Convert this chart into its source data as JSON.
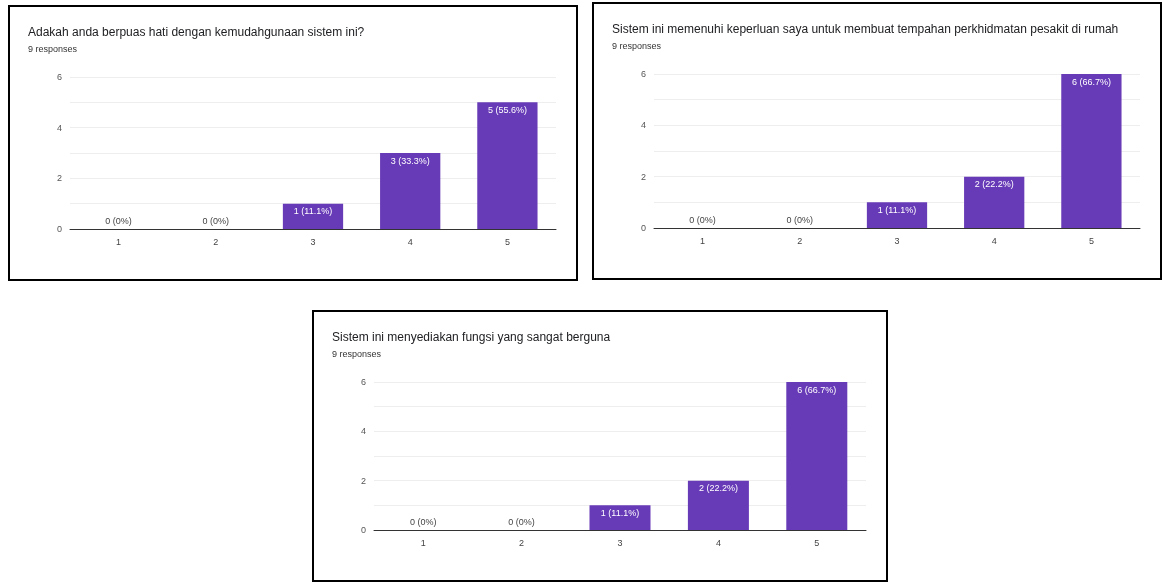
{
  "chart_data": [
    {
      "type": "bar",
      "title": "Adakah anda berpuas hati dengan kemudahgunaan sistem ini?",
      "subtitle": "9 responses",
      "categories": [
        "1",
        "2",
        "3",
        "4",
        "5"
      ],
      "values": [
        0,
        0,
        1,
        3,
        5
      ],
      "value_labels": [
        "0 (0%)",
        "0 (0%)",
        "1 (11.1%)",
        "3 (33.3%)",
        "5 (55.6%)"
      ],
      "color": "#673ab7",
      "ylim": [
        0,
        6
      ],
      "yticks": [
        0,
        {
          "value": 1,
          "label": null
        },
        2,
        {
          "value": 3,
          "label": null
        },
        4,
        {
          "value": 5,
          "label": null
        },
        6
      ],
      "grid": "y"
    },
    {
      "type": "bar",
      "title": "Sistem ini memenuhi keperluan saya untuk membuat tempahan perkhidmatan pesakit di rumah",
      "subtitle": "9 responses",
      "categories": [
        "1",
        "2",
        "3",
        "4",
        "5"
      ],
      "values": [
        0,
        0,
        1,
        2,
        6
      ],
      "value_labels": [
        "0 (0%)",
        "0 (0%)",
        "1 (11.1%)",
        "2 (22.2%)",
        "6 (66.7%)"
      ],
      "color": "#673ab7",
      "ylim": [
        0,
        6
      ],
      "yticks": [
        0,
        {
          "value": 1,
          "label": null
        },
        2,
        {
          "value": 3,
          "label": null
        },
        4,
        {
          "value": 5,
          "label": null
        },
        6
      ],
      "grid": "y"
    },
    {
      "type": "bar",
      "title": "Sistem ini menyediakan fungsi yang sangat berguna",
      "subtitle": "9 responses",
      "categories": [
        "1",
        "2",
        "3",
        "4",
        "5"
      ],
      "values": [
        0,
        0,
        1,
        2,
        6
      ],
      "value_labels": [
        "0 (0%)",
        "0 (0%)",
        "1 (11.1%)",
        "2 (22.2%)",
        "6 (66.7%)"
      ],
      "color": "#673ab7",
      "ylim": [
        0,
        6
      ],
      "yticks": [
        0,
        {
          "value": 1,
          "label": null
        },
        2,
        {
          "value": 3,
          "label": null
        },
        4,
        {
          "value": 5,
          "label": null
        },
        6
      ],
      "grid": "y"
    }
  ]
}
